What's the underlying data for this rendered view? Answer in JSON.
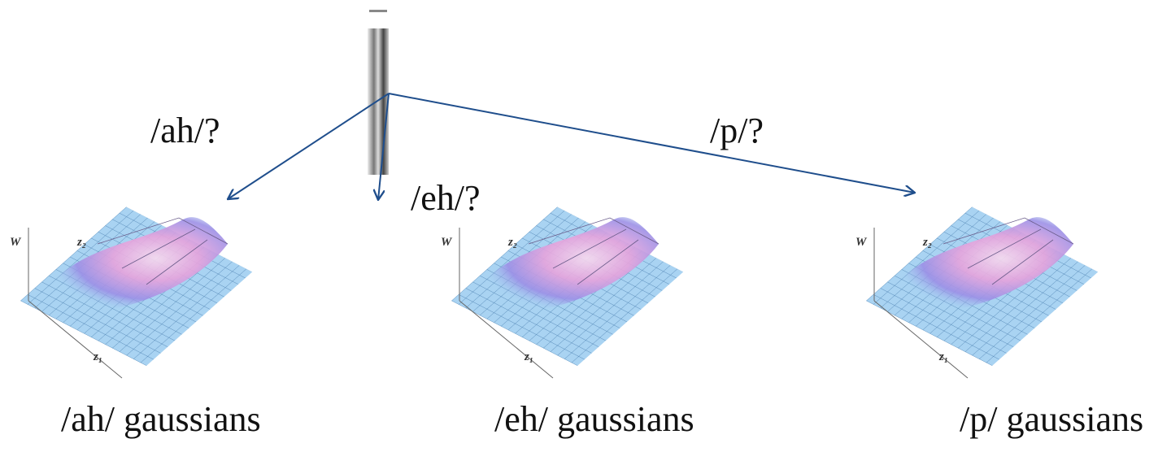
{
  "edges": [
    {
      "label": "/ah/?"
    },
    {
      "label": "/eh/?"
    },
    {
      "label": "/p/?"
    }
  ],
  "nodes": [
    {
      "label": "/ah/ gaussians"
    },
    {
      "label": "/eh/ gaussians"
    },
    {
      "label": "/p/ gaussians"
    }
  ],
  "plot_axes": {
    "w": "W",
    "z1": "z₁",
    "z2": "z₂"
  }
}
